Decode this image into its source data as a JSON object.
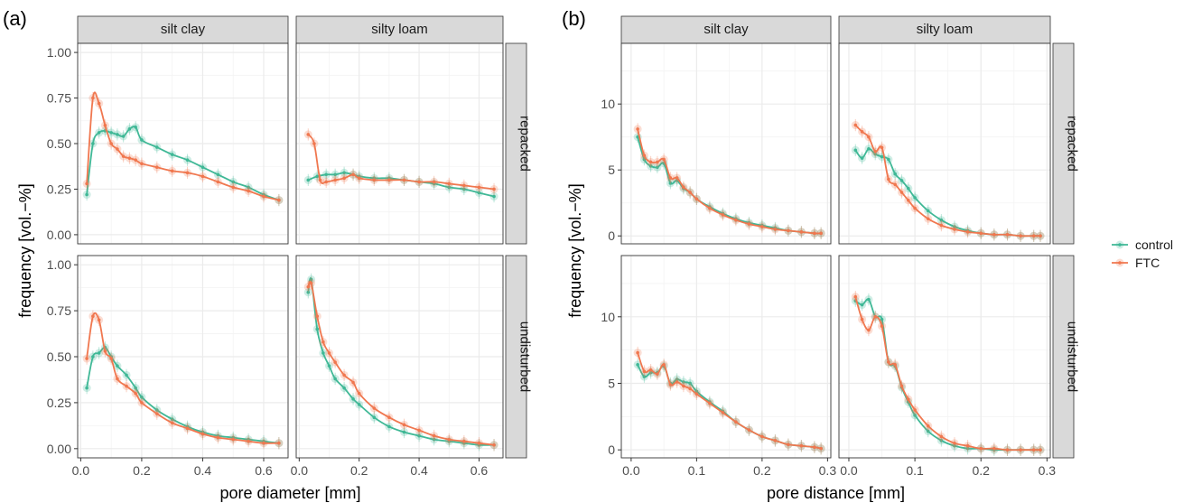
{
  "colors": {
    "control": "#3fb896",
    "FTC": "#f0774f",
    "strip": "#d9d9d9",
    "grid": "#ebebeb"
  },
  "figure": {
    "legend_placement": "right",
    "legend": [
      {
        "label": "control",
        "color": "#3fb896"
      },
      {
        "label": "FTC",
        "color": "#f0774f"
      }
    ]
  },
  "chart_data": [
    {
      "panel_label": "(a)",
      "type": "scatter",
      "xlabel": "pore diameter [mm]",
      "ylabel": "frequency [vol.−%]",
      "col_facets": [
        "silt clay",
        "silty loam"
      ],
      "row_facets": [
        "repacked",
        "undisturbed"
      ],
      "xlim": [
        -0.01,
        0.68
      ],
      "ylim": [
        -0.05,
        1.05
      ],
      "xticks": [
        0.0,
        0.2,
        0.4,
        0.6
      ],
      "xticklabels": [
        "0.0",
        "0.2",
        "0.4",
        "0.6"
      ],
      "yticks": [
        0.0,
        0.25,
        0.5,
        0.75,
        1.0
      ],
      "yticklabels": [
        "0.00",
        "0.25",
        "0.50",
        "0.75",
        "1.00"
      ],
      "grid": true,
      "facets": [
        {
          "col": "silt clay",
          "row": "repacked",
          "series": [
            {
              "name": "control",
              "x": [
                0.02,
                0.04,
                0.06,
                0.08,
                0.1,
                0.12,
                0.14,
                0.16,
                0.18,
                0.2,
                0.25,
                0.3,
                0.35,
                0.4,
                0.45,
                0.5,
                0.55,
                0.6,
                0.65
              ],
              "y": [
                0.22,
                0.5,
                0.56,
                0.57,
                0.56,
                0.55,
                0.54,
                0.58,
                0.59,
                0.52,
                0.48,
                0.44,
                0.41,
                0.37,
                0.33,
                0.29,
                0.26,
                0.22,
                0.19
              ]
            },
            {
              "name": "FTC",
              "x": [
                0.02,
                0.04,
                0.06,
                0.08,
                0.1,
                0.12,
                0.14,
                0.16,
                0.18,
                0.2,
                0.25,
                0.3,
                0.35,
                0.4,
                0.45,
                0.5,
                0.55,
                0.6,
                0.65
              ],
              "y": [
                0.28,
                0.75,
                0.72,
                0.6,
                0.5,
                0.47,
                0.43,
                0.42,
                0.41,
                0.39,
                0.37,
                0.35,
                0.34,
                0.32,
                0.29,
                0.26,
                0.24,
                0.21,
                0.19
              ]
            }
          ]
        },
        {
          "col": "silty loam",
          "row": "repacked",
          "series": [
            {
              "name": "control",
              "x": [
                0.03,
                0.06,
                0.09,
                0.12,
                0.15,
                0.18,
                0.2,
                0.25,
                0.3,
                0.35,
                0.4,
                0.45,
                0.5,
                0.55,
                0.6,
                0.65
              ],
              "y": [
                0.3,
                0.32,
                0.33,
                0.33,
                0.34,
                0.33,
                0.32,
                0.31,
                0.31,
                0.3,
                0.29,
                0.28,
                0.26,
                0.25,
                0.23,
                0.21
              ]
            },
            {
              "name": "FTC",
              "x": [
                0.03,
                0.05,
                0.07,
                0.09,
                0.12,
                0.15,
                0.18,
                0.2,
                0.25,
                0.3,
                0.35,
                0.4,
                0.45,
                0.5,
                0.55,
                0.6,
                0.65
              ],
              "y": [
                0.55,
                0.5,
                0.3,
                0.29,
                0.3,
                0.31,
                0.33,
                0.31,
                0.3,
                0.3,
                0.3,
                0.29,
                0.29,
                0.28,
                0.27,
                0.26,
                0.25
              ]
            }
          ]
        },
        {
          "col": "silt clay",
          "row": "undisturbed",
          "series": [
            {
              "name": "control",
              "x": [
                0.02,
                0.04,
                0.06,
                0.08,
                0.1,
                0.12,
                0.15,
                0.18,
                0.2,
                0.25,
                0.3,
                0.35,
                0.4,
                0.45,
                0.5,
                0.55,
                0.6,
                0.65
              ],
              "y": [
                0.33,
                0.5,
                0.52,
                0.55,
                0.5,
                0.45,
                0.4,
                0.33,
                0.28,
                0.21,
                0.16,
                0.12,
                0.09,
                0.07,
                0.06,
                0.05,
                0.04,
                0.03
              ]
            },
            {
              "name": "FTC",
              "x": [
                0.02,
                0.04,
                0.06,
                0.08,
                0.1,
                0.12,
                0.15,
                0.18,
                0.2,
                0.25,
                0.3,
                0.35,
                0.4,
                0.45,
                0.5,
                0.55,
                0.6,
                0.65
              ],
              "y": [
                0.49,
                0.72,
                0.7,
                0.53,
                0.49,
                0.38,
                0.34,
                0.3,
                0.25,
                0.19,
                0.14,
                0.11,
                0.08,
                0.06,
                0.05,
                0.04,
                0.03,
                0.03
              ]
            }
          ]
        },
        {
          "col": "silty loam",
          "row": "undisturbed",
          "series": [
            {
              "name": "control",
              "x": [
                0.03,
                0.04,
                0.06,
                0.08,
                0.1,
                0.12,
                0.15,
                0.18,
                0.2,
                0.25,
                0.3,
                0.35,
                0.4,
                0.45,
                0.5,
                0.55,
                0.6,
                0.65
              ],
              "y": [
                0.85,
                0.92,
                0.65,
                0.52,
                0.45,
                0.38,
                0.33,
                0.27,
                0.24,
                0.17,
                0.12,
                0.09,
                0.07,
                0.05,
                0.04,
                0.03,
                0.02,
                0.02
              ]
            },
            {
              "name": "FTC",
              "x": [
                0.03,
                0.04,
                0.06,
                0.08,
                0.1,
                0.12,
                0.15,
                0.18,
                0.2,
                0.25,
                0.3,
                0.35,
                0.4,
                0.45,
                0.5,
                0.55,
                0.6,
                0.65
              ],
              "y": [
                0.88,
                0.9,
                0.72,
                0.58,
                0.52,
                0.47,
                0.4,
                0.36,
                0.3,
                0.22,
                0.17,
                0.13,
                0.1,
                0.07,
                0.05,
                0.04,
                0.03,
                0.02
              ]
            }
          ]
        }
      ]
    },
    {
      "panel_label": "(b)",
      "type": "scatter",
      "xlabel": "pore distance [mm]",
      "ylabel": "frequency [vol.−%]",
      "col_facets": [
        "silt clay",
        "silty loam"
      ],
      "row_facets": [
        "repacked",
        "undisturbed"
      ],
      "xlim": [
        -0.015,
        0.305
      ],
      "ylim": [
        -0.6,
        14.6
      ],
      "xticks": [
        0.0,
        0.1,
        0.2,
        0.3
      ],
      "xticklabels": [
        "0.0",
        "0.1",
        "0.2",
        "0.3"
      ],
      "yticks": [
        0,
        5,
        10
      ],
      "yticklabels": [
        "0",
        "5",
        "10"
      ],
      "grid": true,
      "facets": [
        {
          "col": "silt clay",
          "row": "repacked",
          "series": [
            {
              "name": "control",
              "x": [
                0.01,
                0.02,
                0.03,
                0.04,
                0.05,
                0.06,
                0.07,
                0.08,
                0.09,
                0.1,
                0.12,
                0.14,
                0.16,
                0.18,
                0.2,
                0.22,
                0.24,
                0.26,
                0.28,
                0.29
              ],
              "y": [
                7.5,
                5.8,
                5.3,
                5.2,
                5.5,
                4.0,
                4.2,
                3.6,
                3.3,
                2.8,
                2.2,
                1.7,
                1.3,
                1.0,
                0.8,
                0.6,
                0.4,
                0.3,
                0.2,
                0.2
              ]
            },
            {
              "name": "FTC",
              "x": [
                0.01,
                0.02,
                0.03,
                0.04,
                0.05,
                0.06,
                0.07,
                0.08,
                0.09,
                0.1,
                0.12,
                0.14,
                0.16,
                0.18,
                0.2,
                0.22,
                0.24,
                0.26,
                0.28,
                0.29
              ],
              "y": [
                8.1,
                6.1,
                5.6,
                5.6,
                5.8,
                4.4,
                4.4,
                3.7,
                3.3,
                2.8,
                2.1,
                1.6,
                1.2,
                0.9,
                0.7,
                0.5,
                0.4,
                0.3,
                0.2,
                0.2
              ]
            }
          ]
        },
        {
          "col": "silty loam",
          "row": "repacked",
          "series": [
            {
              "name": "control",
              "x": [
                0.01,
                0.02,
                0.03,
                0.04,
                0.05,
                0.06,
                0.07,
                0.08,
                0.09,
                0.1,
                0.12,
                0.14,
                0.16,
                0.18,
                0.2,
                0.22,
                0.24,
                0.26,
                0.28,
                0.29
              ],
              "y": [
                6.5,
                5.9,
                6.6,
                6.2,
                6.0,
                5.8,
                4.7,
                4.2,
                3.6,
                2.9,
                1.9,
                1.2,
                0.7,
                0.4,
                0.2,
                0.1,
                0.1,
                0.0,
                0.0,
                0.0
              ]
            },
            {
              "name": "FTC",
              "x": [
                0.01,
                0.02,
                0.03,
                0.04,
                0.05,
                0.06,
                0.07,
                0.08,
                0.09,
                0.1,
                0.12,
                0.14,
                0.16,
                0.18,
                0.2,
                0.22,
                0.24,
                0.26,
                0.28,
                0.29
              ],
              "y": [
                8.4,
                7.9,
                7.5,
                6.4,
                6.7,
                4.3,
                3.9,
                3.3,
                2.7,
                2.1,
                1.3,
                0.8,
                0.5,
                0.3,
                0.2,
                0.1,
                0.1,
                0.0,
                0.0,
                0.0
              ]
            }
          ]
        },
        {
          "col": "silt clay",
          "row": "undisturbed",
          "series": [
            {
              "name": "control",
              "x": [
                0.01,
                0.02,
                0.03,
                0.04,
                0.05,
                0.06,
                0.07,
                0.08,
                0.09,
                0.1,
                0.12,
                0.14,
                0.16,
                0.18,
                0.2,
                0.22,
                0.24,
                0.26,
                0.28,
                0.29
              ],
              "y": [
                6.4,
                5.5,
                5.8,
                5.8,
                6.3,
                5.0,
                5.3,
                5.1,
                5.0,
                4.4,
                3.6,
                2.9,
                2.1,
                1.5,
                1.0,
                0.7,
                0.4,
                0.3,
                0.2,
                0.1
              ]
            },
            {
              "name": "FTC",
              "x": [
                0.01,
                0.02,
                0.03,
                0.04,
                0.05,
                0.06,
                0.07,
                0.08,
                0.09,
                0.1,
                0.12,
                0.14,
                0.16,
                0.18,
                0.2,
                0.22,
                0.24,
                0.26,
                0.28,
                0.29
              ],
              "y": [
                7.3,
                5.9,
                6.0,
                5.7,
                6.4,
                4.9,
                5.1,
                4.8,
                4.6,
                4.2,
                3.5,
                2.8,
                2.1,
                1.5,
                1.0,
                0.7,
                0.4,
                0.3,
                0.2,
                0.1
              ]
            }
          ]
        },
        {
          "col": "silty loam",
          "row": "undisturbed",
          "series": [
            {
              "name": "control",
              "x": [
                0.01,
                0.02,
                0.03,
                0.04,
                0.05,
                0.06,
                0.07,
                0.08,
                0.09,
                0.1,
                0.12,
                0.14,
                0.16,
                0.18,
                0.2,
                0.22,
                0.24,
                0.26,
                0.28,
                0.29
              ],
              "y": [
                11.2,
                10.9,
                11.3,
                10.0,
                9.8,
                6.6,
                6.3,
                4.7,
                3.6,
                2.6,
                1.4,
                0.7,
                0.3,
                0.1,
                0.1,
                0.0,
                0.0,
                0.0,
                0.0,
                0.0
              ]
            },
            {
              "name": "FTC",
              "x": [
                0.01,
                0.02,
                0.03,
                0.04,
                0.05,
                0.06,
                0.07,
                0.08,
                0.09,
                0.1,
                0.12,
                0.14,
                0.16,
                0.18,
                0.2,
                0.22,
                0.24,
                0.26,
                0.28,
                0.29
              ],
              "y": [
                11.5,
                9.8,
                9.0,
                10.0,
                9.3,
                6.6,
                6.4,
                4.8,
                3.8,
                3.0,
                1.8,
                1.0,
                0.5,
                0.3,
                0.1,
                0.1,
                0.0,
                0.0,
                0.0,
                0.0
              ]
            }
          ]
        }
      ]
    }
  ]
}
